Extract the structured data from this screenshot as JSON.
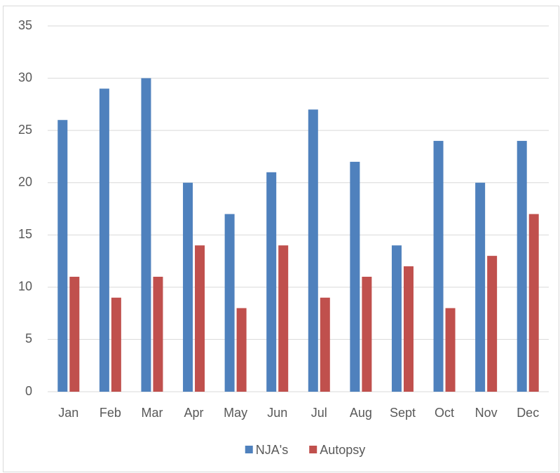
{
  "chart_data": {
    "type": "bar",
    "categories": [
      "Jan",
      "Feb",
      "Mar",
      "Apr",
      "May",
      "Jun",
      "Jul",
      "Aug",
      "Sept",
      "Oct",
      "Nov",
      "Dec"
    ],
    "series": [
      {
        "name": "NJA's",
        "color": "#4f81bd",
        "values": [
          26,
          29,
          30,
          20,
          17,
          21,
          27,
          22,
          14,
          24,
          20,
          24
        ]
      },
      {
        "name": "Autopsy",
        "color": "#c0504d",
        "values": [
          11,
          9,
          11,
          14,
          8,
          14,
          9,
          11,
          12,
          8,
          13,
          17
        ]
      }
    ],
    "ylim": [
      0,
      35
    ],
    "yticks": [
      0,
      5,
      10,
      15,
      20,
      25,
      30,
      35
    ],
    "grid": true,
    "legend": "bottom"
  }
}
